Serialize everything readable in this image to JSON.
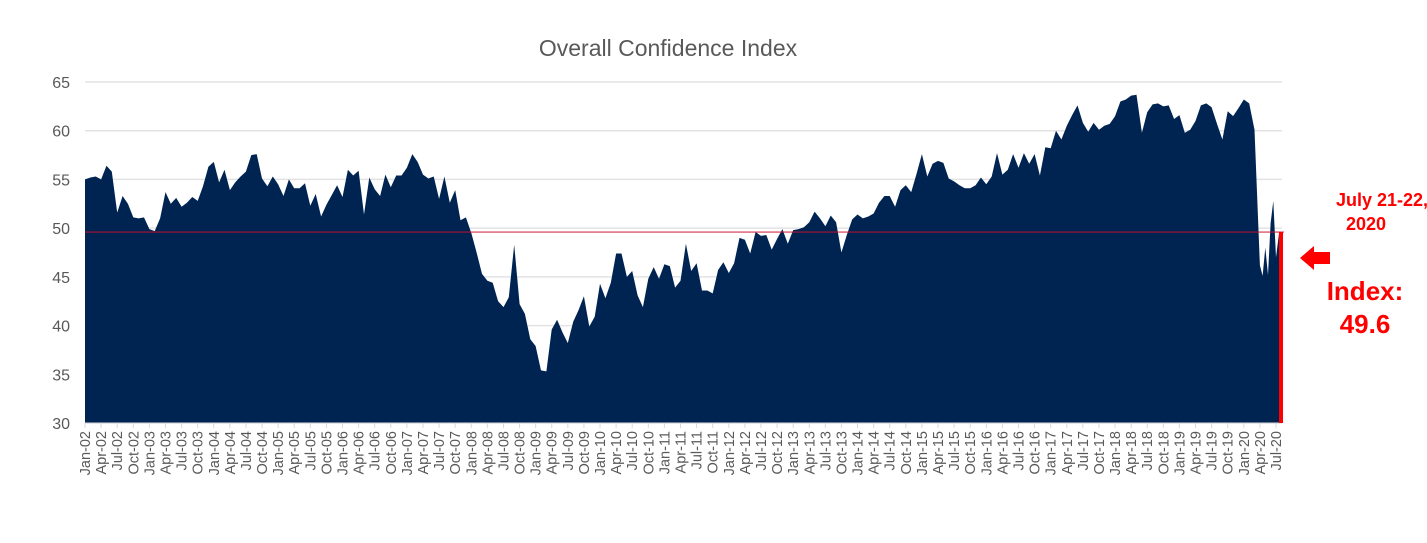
{
  "chart_data": {
    "type": "area",
    "title": "Overall Confidence Index",
    "xlabel": "",
    "ylabel": "",
    "ylim": [
      30,
      65
    ],
    "yticks": [
      30,
      35,
      40,
      45,
      50,
      55,
      60,
      65
    ],
    "grid": true,
    "fill_color": "#002452",
    "reference_color": "#ff0000",
    "series": [
      {
        "start": "Jan-02",
        "frequency": "monthly",
        "values": [
          55,
          55.2,
          55.3,
          55,
          56.4,
          55.8,
          51.6,
          53.3,
          52.5,
          51.1,
          51,
          51.1,
          49.9,
          49.7,
          51,
          53.7,
          52.5,
          53.1,
          52.2,
          52.6,
          53.2,
          52.8,
          54.3,
          56.3,
          56.8,
          54.7,
          56,
          53.9,
          54.7,
          55.3,
          55.8,
          57.5,
          57.6,
          55.1,
          54.3,
          55.3,
          54.5,
          53.3,
          55,
          54.1,
          54.1,
          54.6,
          52.3,
          53.5,
          51.2,
          52.4,
          53.4,
          54.4,
          53.2,
          56,
          55.4,
          55.9,
          51.4,
          55.2,
          54,
          53.3,
          55.5,
          54.2,
          55.4,
          55.4,
          56.2,
          57.6,
          56.8,
          55.5,
          55.1,
          55.3,
          53,
          55.3,
          52.6,
          53.9,
          50.8,
          51.1,
          49.5,
          47.5,
          45.3,
          44.6,
          44.4,
          42.5,
          41.9,
          42.9,
          48.3,
          42.2,
          41.2,
          38.6,
          37.9,
          35.4,
          35.3,
          39.6,
          40.6,
          39.3,
          38.2,
          40.4,
          41.6,
          43,
          39.9,
          40.9,
          44.3,
          42.8,
          44.4,
          47.4,
          47.4,
          45,
          45.6,
          43.1,
          41.9,
          44.8,
          46,
          44.8,
          46.3,
          46.1,
          43.9,
          44.6,
          48.4,
          45.6,
          46.4,
          43.6,
          43.6,
          43.3,
          45.7,
          46.5,
          45.4,
          46.4,
          49,
          48.8,
          47.4,
          49.6,
          49.2,
          49.3,
          47.8,
          48.9,
          49.9,
          48.4,
          49.8,
          49.9,
          50.1,
          50.6,
          51.7,
          51,
          50.2,
          51.3,
          50.6,
          47.5,
          49.3,
          50.9,
          51.4,
          51,
          51.2,
          51.5,
          52.6,
          53.3,
          53.3,
          52.2,
          53.9,
          54.4,
          53.7,
          55.6,
          57.6,
          55.3,
          56.6,
          56.9,
          56.7,
          55.1,
          54.8,
          54.4,
          54.1,
          54.1,
          54.4,
          55.2,
          54.5,
          55.3,
          57.7,
          55.5,
          56,
          57.6,
          56.2,
          57.7,
          56.6,
          57.6,
          55.4,
          58.3,
          58.2,
          60,
          59.1,
          60.5,
          61.6,
          62.6,
          60.8,
          59.9,
          60.8,
          60.1,
          60.5,
          60.7,
          61.5,
          63,
          63.2,
          63.6,
          63.7,
          59.8,
          61.9,
          62.7,
          62.8,
          62.5,
          62.6,
          61.2,
          61.6,
          59.8,
          60.1,
          61,
          62.6,
          62.8,
          62.4,
          60.7,
          59.1,
          62,
          61.5,
          62.3,
          63.2,
          62.8
        ],
        "extra_points": [
          {
            "x": "Mar-20",
            "y": 60.1
          },
          {
            "x": "Apr-20 (early)",
            "y": 46.2
          },
          {
            "x": "Apr-20 (late)",
            "y": 45.1
          },
          {
            "x": "May-20 (early)",
            "y": 48.0
          },
          {
            "x": "May-20 (late)",
            "y": 45.2
          },
          {
            "x": "Jun-20 (early)",
            "y": 50.5
          },
          {
            "x": "Jun-20 (late)",
            "y": 52.8
          },
          {
            "x": "Jul-20 (early)",
            "y": 47.0
          },
          {
            "x": "Jul-20 (late)",
            "y": 49.6
          }
        ]
      }
    ],
    "xticks": [
      "Jan-02",
      "Apr-02",
      "Jul-02",
      "Oct-02",
      "Jan-03",
      "Apr-03",
      "Jul-03",
      "Oct-03",
      "Jan-04",
      "Apr-04",
      "Jul-04",
      "Oct-04",
      "Jan-05",
      "Apr-05",
      "Jul-05",
      "Oct-05",
      "Jan-06",
      "Apr-06",
      "Jul-06",
      "Oct-06",
      "Jan-07",
      "Apr-07",
      "Jul-07",
      "Oct-07",
      "Jan-08",
      "Apr-08",
      "Jul-08",
      "Oct-08",
      "Jan-09",
      "Apr-09",
      "Jul-09",
      "Oct-09",
      "Jan-10",
      "Apr-10",
      "Jul-10",
      "Oct-10",
      "Jan-11",
      "Apr-11",
      "Jul-11",
      "Oct-11",
      "Jan-12",
      "Apr-12",
      "Jul-12",
      "Oct-12",
      "Jan-13",
      "Apr-13",
      "Jul-13",
      "Oct-13",
      "Jan-14",
      "Apr-14",
      "Jul-14",
      "Oct-14",
      "Jan-15",
      "Apr-15",
      "Jul-15",
      "Oct-15",
      "Jan-16",
      "Apr-16",
      "Jul-16",
      "Oct-16",
      "Jan-17",
      "Apr-17",
      "Jul-17",
      "Oct-17",
      "Jan-18",
      "Apr-18",
      "Jul-18",
      "Oct-18",
      "Jan-19",
      "Apr-19",
      "Jul-19",
      "Oct-19",
      "Jan-20",
      "Apr-20",
      "Jul-20"
    ],
    "reference_line": 49.6,
    "annotations": {
      "date_line1": "July 21-22,",
      "date_line2": "2020",
      "index_label": "Index:",
      "index_value": "49.6"
    }
  }
}
